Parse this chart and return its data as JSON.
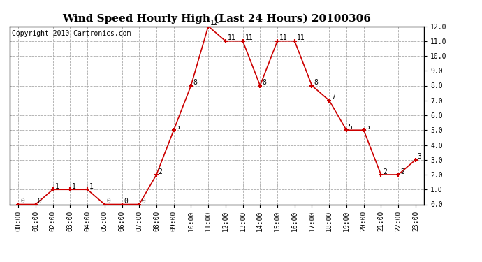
{
  "title": "Wind Speed Hourly High (Last 24 Hours) 20100306",
  "copyright": "Copyright 2010 Cartronics.com",
  "hours": [
    "00:00",
    "01:00",
    "02:00",
    "03:00",
    "04:00",
    "05:00",
    "06:00",
    "07:00",
    "08:00",
    "09:00",
    "10:00",
    "11:00",
    "12:00",
    "13:00",
    "14:00",
    "15:00",
    "16:00",
    "17:00",
    "18:00",
    "19:00",
    "20:00",
    "21:00",
    "22:00",
    "23:00"
  ],
  "values": [
    0,
    0,
    1,
    1,
    1,
    0,
    0,
    0,
    2,
    5,
    8,
    12,
    11,
    11,
    8,
    11,
    11,
    8,
    7,
    5,
    5,
    2,
    2,
    3
  ],
  "line_color": "#cc0000",
  "marker_color": "#cc0000",
  "bg_color": "#ffffff",
  "grid_color": "#aaaaaa",
  "ylim_min": 0.0,
  "ylim_max": 12.0,
  "ytick_step": 1.0,
  "title_fontsize": 11,
  "label_fontsize": 7,
  "annotation_fontsize": 7,
  "copyright_fontsize": 7
}
